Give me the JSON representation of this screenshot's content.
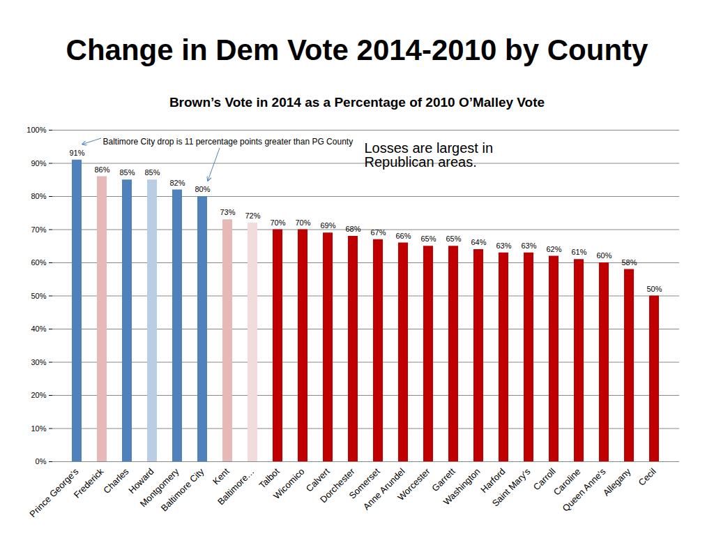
{
  "chart_data": {
    "type": "bar",
    "title": "Change in Dem Vote 2014-2010 by County",
    "subtitle": "Brown’s Vote in 2014 as a Percentage of 2010 O’Malley Vote",
    "categories": [
      "Prince George's",
      "Frederick",
      "Charles",
      "Howard",
      "Montgomery",
      "Baltimore City",
      "Kent",
      "Baltimore…",
      "Talbot",
      "Wicomico",
      "Calvert",
      "Dorchester",
      "Somerset",
      "Anne Arundel",
      "Worcester",
      "Garrett",
      "Washington",
      "Harford",
      "Saint Mary's",
      "Carroll",
      "Caroline",
      "Queen Anne's",
      "Allegany",
      "Cecil"
    ],
    "values": [
      91,
      86,
      85,
      85,
      82,
      80,
      73,
      72,
      70,
      70,
      69,
      68,
      67,
      66,
      65,
      65,
      64,
      63,
      63,
      62,
      61,
      60,
      58,
      50
    ],
    "value_labels": [
      "91%",
      "86%",
      "85%",
      "85%",
      "82%",
      "80%",
      "73%",
      "72%",
      "70%",
      "70%",
      "69%",
      "68%",
      "67%",
      "66%",
      "65%",
      "65%",
      "64%",
      "63%",
      "63%",
      "62%",
      "61%",
      "60%",
      "58%",
      "50%"
    ],
    "colors": [
      "#4f81bd",
      "#e6b9b8",
      "#4f81bd",
      "#b9cde5",
      "#4f81bd",
      "#4f81bd",
      "#e6b9b8",
      "#f2dcdb",
      "#c00000",
      "#c00000",
      "#c00000",
      "#c00000",
      "#c00000",
      "#c00000",
      "#c00000",
      "#c00000",
      "#c00000",
      "#c00000",
      "#c00000",
      "#c00000",
      "#c00000",
      "#c00000",
      "#c00000",
      "#c00000"
    ],
    "ylim": [
      0,
      100
    ],
    "yticks": [
      {
        "value": 0,
        "label": "0%"
      },
      {
        "value": 10,
        "label": "10%"
      },
      {
        "value": 20,
        "label": "20%"
      },
      {
        "value": 30,
        "label": "30%"
      },
      {
        "value": 40,
        "label": "40%"
      },
      {
        "value": 50,
        "label": "50%"
      },
      {
        "value": 60,
        "label": "60%"
      },
      {
        "value": 70,
        "label": "70%"
      },
      {
        "value": 80,
        "label": "80%"
      },
      {
        "value": 90,
        "label": "90%"
      },
      {
        "value": 100,
        "label": "100%"
      }
    ],
    "grid": true,
    "data_labels": true,
    "annotations": [
      {
        "text": "Baltimore City drop is 11 percentage points greater than PG County",
        "points_to": [
          "Prince George's",
          "Baltimore City"
        ]
      },
      {
        "text": "Losses are largest in Republican areas."
      }
    ]
  }
}
